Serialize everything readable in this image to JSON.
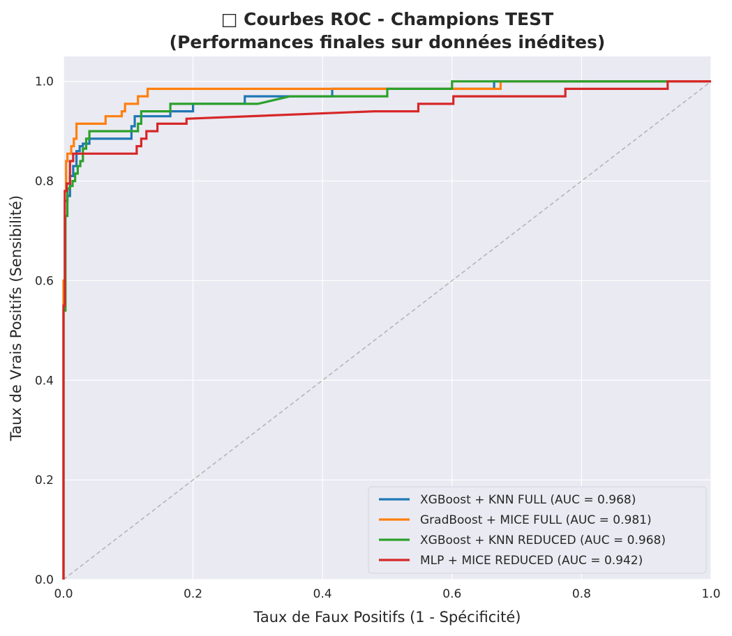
{
  "chart_data": {
    "type": "line",
    "title": "□ Courbes ROC - Champions TEST",
    "subtitle": "(Performances finales sur données inédites)",
    "xlabel": "Taux de Faux Positifs (1 - Spécificité)",
    "ylabel": "Taux de Vrais Positifs (Sensibilité)",
    "xlim": [
      0,
      1.0
    ],
    "ylim": [
      0,
      1.05
    ],
    "xticks": [
      "0.0",
      "0.2",
      "0.4",
      "0.6",
      "0.8",
      "1.0"
    ],
    "yticks": [
      "0.0",
      "0.2",
      "0.4",
      "0.6",
      "0.8",
      "1.0"
    ],
    "grid": true,
    "legend_position": "bottom-right",
    "diagonal": {
      "color": "#b5b5b5",
      "style": "dashed",
      "points": [
        [
          0,
          0
        ],
        [
          1,
          1
        ]
      ]
    },
    "series": [
      {
        "name": "XGBoost + KNN FULL (AUC = 0.968)",
        "color": "#1f77b4",
        "points": [
          [
            0,
            0
          ],
          [
            0,
            0.54
          ],
          [
            0.002,
            0.54
          ],
          [
            0.002,
            0.76
          ],
          [
            0.006,
            0.76
          ],
          [
            0.006,
            0.77
          ],
          [
            0.01,
            0.77
          ],
          [
            0.01,
            0.81
          ],
          [
            0.015,
            0.81
          ],
          [
            0.015,
            0.83
          ],
          [
            0.02,
            0.83
          ],
          [
            0.02,
            0.86
          ],
          [
            0.025,
            0.86
          ],
          [
            0.025,
            0.87
          ],
          [
            0.03,
            0.87
          ],
          [
            0.03,
            0.875
          ],
          [
            0.04,
            0.875
          ],
          [
            0.04,
            0.885
          ],
          [
            0.105,
            0.885
          ],
          [
            0.105,
            0.91
          ],
          [
            0.11,
            0.91
          ],
          [
            0.11,
            0.93
          ],
          [
            0.165,
            0.93
          ],
          [
            0.165,
            0.94
          ],
          [
            0.2,
            0.94
          ],
          [
            0.2,
            0.955
          ],
          [
            0.28,
            0.955
          ],
          [
            0.28,
            0.97
          ],
          [
            0.415,
            0.97
          ],
          [
            0.415,
            0.985
          ],
          [
            0.665,
            0.985
          ],
          [
            0.665,
            1.0
          ],
          [
            1.0,
            1.0
          ]
        ]
      },
      {
        "name": "GradBoost + MICE FULL (AUC = 0.981)",
        "color": "#ff7f0e",
        "points": [
          [
            0,
            0
          ],
          [
            0,
            0.6
          ],
          [
            0.002,
            0.6
          ],
          [
            0.002,
            0.78
          ],
          [
            0.004,
            0.78
          ],
          [
            0.004,
            0.84
          ],
          [
            0.006,
            0.84
          ],
          [
            0.006,
            0.855
          ],
          [
            0.012,
            0.855
          ],
          [
            0.012,
            0.87
          ],
          [
            0.016,
            0.87
          ],
          [
            0.016,
            0.885
          ],
          [
            0.02,
            0.885
          ],
          [
            0.02,
            0.915
          ],
          [
            0.065,
            0.915
          ],
          [
            0.065,
            0.93
          ],
          [
            0.09,
            0.93
          ],
          [
            0.09,
            0.94
          ],
          [
            0.095,
            0.94
          ],
          [
            0.095,
            0.955
          ],
          [
            0.115,
            0.955
          ],
          [
            0.115,
            0.97
          ],
          [
            0.13,
            0.97
          ],
          [
            0.13,
            0.985
          ],
          [
            0.675,
            0.985
          ],
          [
            0.675,
            1.0
          ],
          [
            1.0,
            1.0
          ]
        ]
      },
      {
        "name": "XGBoost + KNN REDUCED (AUC = 0.968)",
        "color": "#2ca02c",
        "points": [
          [
            0,
            0
          ],
          [
            0,
            0.54
          ],
          [
            0.003,
            0.54
          ],
          [
            0.003,
            0.73
          ],
          [
            0.006,
            0.73
          ],
          [
            0.006,
            0.785
          ],
          [
            0.01,
            0.785
          ],
          [
            0.01,
            0.79
          ],
          [
            0.014,
            0.79
          ],
          [
            0.014,
            0.8
          ],
          [
            0.018,
            0.8
          ],
          [
            0.018,
            0.815
          ],
          [
            0.022,
            0.815
          ],
          [
            0.022,
            0.83
          ],
          [
            0.026,
            0.83
          ],
          [
            0.026,
            0.84
          ],
          [
            0.03,
            0.84
          ],
          [
            0.03,
            0.865
          ],
          [
            0.035,
            0.865
          ],
          [
            0.035,
            0.885
          ],
          [
            0.04,
            0.885
          ],
          [
            0.04,
            0.9
          ],
          [
            0.115,
            0.9
          ],
          [
            0.115,
            0.915
          ],
          [
            0.12,
            0.915
          ],
          [
            0.12,
            0.94
          ],
          [
            0.165,
            0.94
          ],
          [
            0.165,
            0.955
          ],
          [
            0.3,
            0.955
          ],
          [
            0.35,
            0.97
          ],
          [
            0.5,
            0.97
          ],
          [
            0.5,
            0.985
          ],
          [
            0.6,
            0.985
          ],
          [
            0.6,
            1.0
          ],
          [
            0.935,
            1.0
          ]
        ]
      },
      {
        "name": "MLP + MICE REDUCED (AUC = 0.942)",
        "color": "#d62728",
        "points": [
          [
            0,
            0
          ],
          [
            0,
            0.55
          ],
          [
            0.002,
            0.55
          ],
          [
            0.002,
            0.78
          ],
          [
            0.005,
            0.78
          ],
          [
            0.005,
            0.795
          ],
          [
            0.01,
            0.795
          ],
          [
            0.01,
            0.84
          ],
          [
            0.015,
            0.84
          ],
          [
            0.015,
            0.855
          ],
          [
            0.113,
            0.855
          ],
          [
            0.113,
            0.87
          ],
          [
            0.12,
            0.87
          ],
          [
            0.12,
            0.885
          ],
          [
            0.128,
            0.885
          ],
          [
            0.128,
            0.9
          ],
          [
            0.145,
            0.9
          ],
          [
            0.145,
            0.915
          ],
          [
            0.19,
            0.915
          ],
          [
            0.19,
            0.925
          ],
          [
            0.48,
            0.94
          ],
          [
            0.548,
            0.94
          ],
          [
            0.548,
            0.955
          ],
          [
            0.602,
            0.955
          ],
          [
            0.602,
            0.97
          ],
          [
            0.775,
            0.97
          ],
          [
            0.775,
            0.985
          ],
          [
            0.933,
            0.985
          ],
          [
            0.933,
            1.0
          ],
          [
            1.0,
            1.0
          ]
        ]
      }
    ]
  }
}
